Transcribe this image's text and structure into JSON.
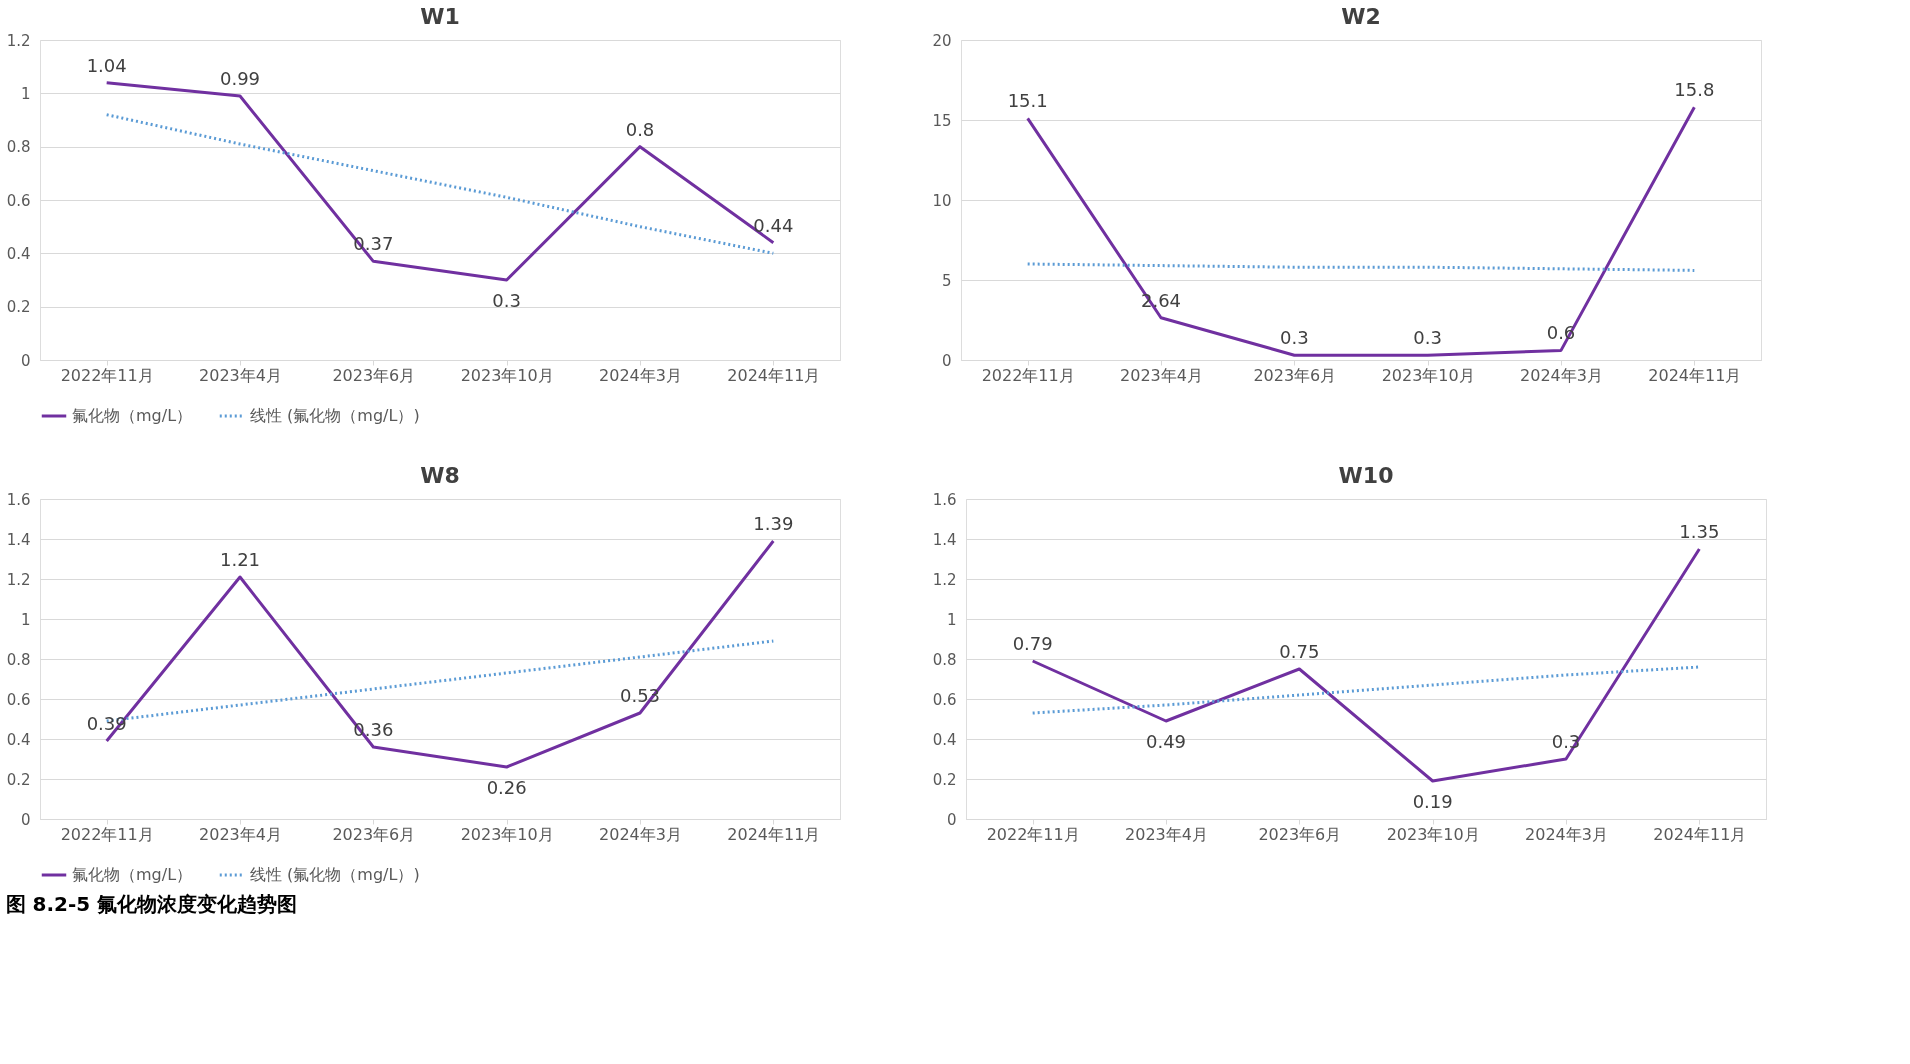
{
  "chart_data": [
    {
      "type": "line",
      "title": "W1",
      "categories": [
        "2022年11月",
        "2023年4月",
        "2023年6月",
        "2023年10月",
        "2024年3月",
        "2024年11月"
      ],
      "series": [
        {
          "name": "氟化物（mg/L）",
          "color": "#7030a0",
          "line_style": "solid",
          "values": [
            1.04,
            0.99,
            0.37,
            0.3,
            0.8,
            0.44
          ],
          "value_labels": [
            "1.04",
            "0.99",
            "0.37",
            "0.3",
            "0.8",
            "0.44"
          ]
        },
        {
          "name": "线性 (氟化物（mg/L）)",
          "color": "#5b9bd5",
          "line_style": "dotted",
          "values": [
            0.92,
            0.81,
            0.71,
            0.61,
            0.5,
            0.4
          ]
        }
      ],
      "ylim": [
        0,
        1.2
      ],
      "yticks": [
        0,
        0.2,
        0.4,
        0.6,
        0.8,
        1,
        1.2
      ],
      "grid": "y",
      "legend": "bottom",
      "marker": "none"
    },
    {
      "type": "line",
      "title": "W2",
      "categories": [
        "2022年11月",
        "2023年4月",
        "2023年6月",
        "2023年10月",
        "2024年3月",
        "2024年11月"
      ],
      "series": [
        {
          "name": "氟化物（mg/L）",
          "color": "#7030a0",
          "line_style": "solid",
          "values": [
            15.1,
            2.64,
            0.3,
            0.3,
            0.6,
            15.8
          ],
          "value_labels": [
            "15.1",
            "2.64",
            "0.3",
            "0.3",
            "0.6",
            "15.8"
          ]
        },
        {
          "name": "线性 (氟化物（mg/L）)",
          "color": "#5b9bd5",
          "line_style": "dotted",
          "values": [
            6.0,
            5.9,
            5.8,
            5.8,
            5.7,
            5.6
          ]
        }
      ],
      "ylim": [
        0,
        20
      ],
      "yticks": [
        0,
        5,
        10,
        15,
        20
      ],
      "grid": "y",
      "legend": "bottom",
      "marker": "none"
    },
    {
      "type": "line",
      "title": "W8",
      "categories": [
        "2022年11月",
        "2023年4月",
        "2023年6月",
        "2023年10月",
        "2024年3月",
        "2024年11月"
      ],
      "series": [
        {
          "name": "氟化物（mg/L）",
          "color": "#7030a0",
          "line_style": "solid",
          "values": [
            0.39,
            1.21,
            0.36,
            0.26,
            0.53,
            1.39
          ],
          "value_labels": [
            "0.39",
            "1.21",
            "0.36",
            "0.26",
            "0.53",
            "1.39"
          ]
        },
        {
          "name": "线性 (氟化物（mg/L）)",
          "color": "#5b9bd5",
          "line_style": "dotted",
          "values": [
            0.49,
            0.57,
            0.65,
            0.73,
            0.81,
            0.89
          ]
        }
      ],
      "ylim": [
        0,
        1.6
      ],
      "yticks": [
        0,
        0.2,
        0.4,
        0.6,
        0.8,
        1,
        1.2,
        1.4,
        1.6
      ],
      "grid": "y",
      "legend": "bottom",
      "marker": "none"
    },
    {
      "type": "line",
      "title": "W10",
      "categories": [
        "2022年11月",
        "2023年4月",
        "2023年6月",
        "2023年10月",
        "2024年3月",
        "2024年11月"
      ],
      "series": [
        {
          "name": "氟化物（mg/L）",
          "color": "#7030a0",
          "line_style": "solid",
          "values": [
            0.79,
            0.49,
            0.75,
            0.19,
            0.3,
            1.35
          ],
          "value_labels": [
            "0.79",
            "0.49",
            "0.75",
            "0.19",
            "0.3",
            "1.35"
          ]
        },
        {
          "name": "线性 (氟化物（mg/L）)",
          "color": "#5b9bd5",
          "line_style": "dotted",
          "values": [
            0.53,
            0.57,
            0.62,
            0.67,
            0.72,
            0.76
          ]
        }
      ],
      "ylim": [
        0,
        1.6
      ],
      "yticks": [
        0,
        0.2,
        0.4,
        0.6,
        0.8,
        1,
        1.2,
        1.4,
        1.6
      ],
      "grid": "y",
      "legend": "bottom",
      "marker": "none",
      "annotations": [
        "图 8.2-5  氟化物浓度变化趋势图"
      ]
    }
  ]
}
